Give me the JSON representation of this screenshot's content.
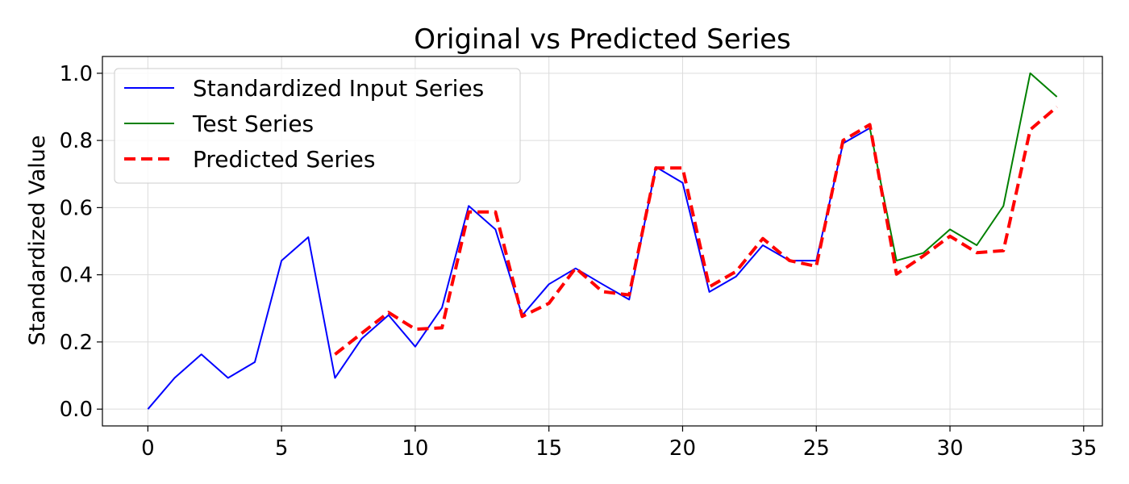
{
  "chart_data": {
    "type": "line",
    "title": "Original vs Predicted Series",
    "xlabel": "",
    "ylabel": "Standardized Value",
    "xlim": [
      -1.7,
      35.7
    ],
    "ylim": [
      -0.05,
      1.05
    ],
    "xticks": [
      0,
      5,
      10,
      15,
      20,
      25,
      30,
      35
    ],
    "yticks": [
      0.0,
      0.2,
      0.4,
      0.6,
      0.8,
      1.0
    ],
    "grid": true,
    "legend_position": "top-left",
    "series": [
      {
        "name": "Standardized Input Series",
        "color": "#0000ff",
        "style": "solid",
        "x": [
          0,
          1,
          2,
          3,
          4,
          5,
          6,
          7,
          8,
          9,
          10,
          11,
          12,
          13,
          14,
          15,
          16,
          17,
          18,
          19,
          20,
          21,
          22,
          23,
          24,
          25,
          26,
          27
        ],
        "y": [
          0.0,
          0.093,
          0.163,
          0.093,
          0.14,
          0.442,
          0.512,
          0.093,
          0.21,
          0.28,
          0.186,
          0.302,
          0.605,
          0.535,
          0.279,
          0.372,
          0.419,
          0.372,
          0.326,
          0.721,
          0.674,
          0.349,
          0.395,
          0.488,
          0.442,
          0.442,
          0.791,
          0.837
        ]
      },
      {
        "name": "Test Series",
        "color": "#008000",
        "style": "solid",
        "x": [
          27,
          28,
          29,
          30,
          31,
          32,
          33,
          34
        ],
        "y": [
          0.837,
          0.442,
          0.465,
          0.535,
          0.488,
          0.605,
          1.0,
          0.93
        ]
      },
      {
        "name": "Predicted Series",
        "color": "#ff0000",
        "style": "dashed",
        "x": [
          7,
          8,
          9,
          10,
          11,
          12,
          13,
          14,
          15,
          16,
          17,
          18,
          19,
          20,
          21,
          22,
          23,
          24,
          25,
          26,
          27,
          28,
          29,
          30,
          31,
          32,
          33,
          34
        ],
        "y": [
          0.163,
          0.226,
          0.288,
          0.238,
          0.242,
          0.587,
          0.587,
          0.276,
          0.315,
          0.42,
          0.35,
          0.34,
          0.718,
          0.718,
          0.364,
          0.41,
          0.508,
          0.442,
          0.425,
          0.8,
          0.847,
          0.402,
          0.456,
          0.515,
          0.466,
          0.472,
          0.832,
          0.9
        ]
      }
    ]
  }
}
